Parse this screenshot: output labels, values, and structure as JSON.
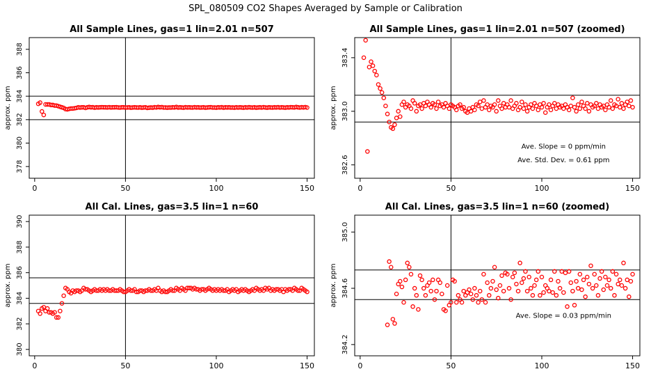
{
  "page_title": "SPL_080509  CO2 Shapes Averaged by Sample or Calibration",
  "colors": {
    "points": "#ff0000",
    "axes": "#000000",
    "background": "#ffffff"
  },
  "chart_data": [
    {
      "type": "scatter",
      "title": "All Sample Lines, gas=1 lin=2.01 n=507",
      "xlabel": "",
      "ylabel": "approx. ppm",
      "xlim": [
        -3,
        154
      ],
      "ylim": [
        377,
        389
      ],
      "xticks": [
        0,
        50,
        100,
        150
      ],
      "yticks": [
        378,
        380,
        382,
        384,
        386,
        388
      ],
      "ytick_labels": [
        "378",
        "380",
        "382",
        "384",
        "386",
        "388"
      ],
      "hlines": [
        384,
        382
      ],
      "vline": 50,
      "annotations": [],
      "x": [
        2,
        3,
        4,
        5,
        6,
        7,
        8,
        9,
        10,
        11,
        12,
        13,
        14,
        15,
        16,
        17,
        18,
        19,
        20,
        21,
        22,
        23,
        24,
        25,
        26,
        27,
        28,
        29,
        30,
        31,
        32,
        33,
        34,
        35,
        36,
        37,
        38,
        39,
        40,
        41,
        42,
        43,
        44,
        45,
        46,
        47,
        48,
        49,
        50,
        51,
        52,
        53,
        54,
        55,
        56,
        57,
        58,
        59,
        60,
        61,
        62,
        63,
        64,
        65,
        66,
        67,
        68,
        69,
        70,
        71,
        72,
        73,
        74,
        75,
        76,
        77,
        78,
        79,
        80,
        81,
        82,
        83,
        84,
        85,
        86,
        87,
        88,
        89,
        90,
        91,
        92,
        93,
        94,
        95,
        96,
        97,
        98,
        99,
        100,
        101,
        102,
        103,
        104,
        105,
        106,
        107,
        108,
        109,
        110,
        111,
        112,
        113,
        114,
        115,
        116,
        117,
        118,
        119,
        120,
        121,
        122,
        123,
        124,
        125,
        126,
        127,
        128,
        129,
        130,
        131,
        132,
        133,
        134,
        135,
        136,
        137,
        138,
        139,
        140,
        141,
        142,
        143,
        144,
        145,
        146,
        147,
        148,
        149,
        150
      ],
      "y": [
        383.35,
        383.45,
        382.7,
        382.4,
        383.3,
        383.3,
        383.3,
        383.25,
        383.25,
        383.2,
        383.2,
        383.15,
        383.1,
        383.05,
        383.0,
        382.9,
        382.88,
        382.92,
        382.95,
        382.95,
        382.97,
        383.0,
        383.05,
        383.03,
        383.05,
        383.05,
        383.0,
        383.05,
        383.08,
        383.05,
        383.06,
        383.02,
        383.05,
        383.04,
        383.05,
        383.06,
        383.05,
        383.05,
        383.04,
        383.06,
        383.04,
        383.05,
        383.05,
        383.06,
        383.04,
        383.03,
        383.05,
        383.05,
        383.03,
        383.04,
        383.05,
        383.02,
        383.04,
        383.05,
        383.04,
        383.03,
        383.05,
        383.02,
        383.04,
        383.05,
        383.0,
        383.02,
        383.04,
        383.02,
        383.06,
        383.04,
        383.08,
        383.05,
        383.07,
        383.03,
        383.04,
        383.02,
        383.04,
        383.03,
        383.05,
        383.04,
        383.08,
        383.03,
        383.05,
        383.04,
        383.02,
        383.06,
        383.04,
        383.05,
        383.04,
        383.03,
        383.06,
        383.04,
        383.05,
        383.03,
        383.04,
        383.05,
        383.02,
        383.04,
        383.05,
        383.06,
        383.03,
        383.04,
        383.02,
        383.05,
        383.04,
        383.06,
        383.02,
        383.05,
        383.04,
        383.05,
        383.03,
        383.04,
        383.02,
        383.05,
        383.03,
        383.05,
        383.04,
        383.02,
        383.05,
        383.03,
        383.06,
        383.04,
        383.03,
        383.05,
        383.02,
        383.04,
        383.05,
        383.03,
        383.06,
        383.04,
        383.02,
        383.05,
        383.04,
        383.03,
        383.05,
        383.04,
        383.06,
        383.03,
        383.05,
        383.04,
        383.02,
        383.05,
        383.04,
        383.06,
        383.05,
        383.04,
        383.08,
        383.05,
        383.03,
        383.06,
        383.04,
        383.07,
        383.03
      ]
    },
    {
      "type": "scatter",
      "title": "All Sample Lines, gas=1 lin=2.01 n=507 (zoomed)",
      "xlabel": "",
      "ylabel": "approx. ppm",
      "xlim": [
        -3,
        154
      ],
      "ylim": [
        382.5,
        383.55
      ],
      "xticks": [
        0,
        50,
        100,
        150
      ],
      "yticks": [
        382.6,
        383.0,
        383.4
      ],
      "ytick_labels": [
        "382.6",
        "383.0",
        "383.4"
      ],
      "hlines": [
        383.12,
        382.92
      ],
      "vline": 50,
      "annotations": [
        {
          "text": "Ave. Slope =  0  ppm/min",
          "x": 112,
          "y": 382.72
        },
        {
          "text": "Ave. Std. Dev. =  0.61  ppm",
          "x": 112,
          "y": 382.62
        }
      ],
      "x": [
        2,
        3,
        4,
        5,
        6,
        7,
        8,
        9,
        10,
        11,
        12,
        13,
        14,
        15,
        16,
        17,
        18,
        19,
        20,
        21,
        22,
        23,
        24,
        25,
        26,
        27,
        28,
        29,
        30,
        31,
        32,
        33,
        34,
        35,
        36,
        37,
        38,
        39,
        40,
        41,
        42,
        43,
        44,
        45,
        46,
        47,
        48,
        49,
        50,
        51,
        52,
        53,
        54,
        55,
        56,
        57,
        58,
        59,
        60,
        61,
        62,
        63,
        64,
        65,
        66,
        67,
        68,
        69,
        70,
        71,
        72,
        73,
        74,
        75,
        76,
        77,
        78,
        79,
        80,
        81,
        82,
        83,
        84,
        85,
        86,
        87,
        88,
        89,
        90,
        91,
        92,
        93,
        94,
        95,
        96,
        97,
        98,
        99,
        100,
        101,
        102,
        103,
        104,
        105,
        106,
        107,
        108,
        109,
        110,
        111,
        112,
        113,
        114,
        115,
        116,
        117,
        118,
        119,
        120,
        121,
        122,
        123,
        124,
        125,
        126,
        127,
        128,
        129,
        130,
        131,
        132,
        133,
        134,
        135,
        136,
        137,
        138,
        139,
        140,
        141,
        142,
        143,
        144,
        145,
        146,
        147,
        148,
        149,
        150
      ],
      "y": [
        383.4,
        383.53,
        382.7,
        383.33,
        383.37,
        383.34,
        383.3,
        383.27,
        383.2,
        383.17,
        383.14,
        383.1,
        383.04,
        382.98,
        382.92,
        382.88,
        382.87,
        382.9,
        382.95,
        383.0,
        382.96,
        383.05,
        383.07,
        383.03,
        383.05,
        383.04,
        383.02,
        383.08,
        383.06,
        383.0,
        383.04,
        383.05,
        383.02,
        383.06,
        383.04,
        383.07,
        383.05,
        383.03,
        383.06,
        383.05,
        383.02,
        383.07,
        383.04,
        383.05,
        383.03,
        383.06,
        383.04,
        383.02,
        383.05,
        383.04,
        383.03,
        383.01,
        383.04,
        383.05,
        383.02,
        383.03,
        383.0,
        382.99,
        383.02,
        383.0,
        383.03,
        383.01,
        383.05,
        383.04,
        383.07,
        383.02,
        383.08,
        383.03,
        383.05,
        383.01,
        383.04,
        383.03,
        383.05,
        383.0,
        383.08,
        383.04,
        383.02,
        383.06,
        383.03,
        383.05,
        383.03,
        383.08,
        383.02,
        383.04,
        383.06,
        383.01,
        383.03,
        383.07,
        383.02,
        383.05,
        383.0,
        383.03,
        383.05,
        383.02,
        383.06,
        383.04,
        383.01,
        383.05,
        383.03,
        383.06,
        382.99,
        383.03,
        383.05,
        383.01,
        383.04,
        383.06,
        383.02,
        383.05,
        383.03,
        383.04,
        383.02,
        383.05,
        383.03,
        383.01,
        383.04,
        383.1,
        383.03,
        383.0,
        383.05,
        383.02,
        383.07,
        383.04,
        383.02,
        383.06,
        383.0,
        383.05,
        383.03,
        383.04,
        383.06,
        383.02,
        383.05,
        383.03,
        383.04,
        383.01,
        383.05,
        383.03,
        383.08,
        383.02,
        383.05,
        383.04,
        383.09,
        383.03,
        383.06,
        383.02,
        383.05,
        383.07,
        383.04,
        383.08,
        383.03
      ]
    },
    {
      "type": "scatter",
      "title": "All Cal. Lines, gas=3.5 lin=1 n=60",
      "xlabel": "",
      "ylabel": "approx. ppm",
      "xlim": [
        -3,
        154
      ],
      "ylim": [
        379.5,
        390.5
      ],
      "xticks": [
        0,
        50,
        100,
        150
      ],
      "yticks": [
        380,
        382,
        384,
        386,
        388,
        390
      ],
      "ytick_labels": [
        "380",
        "382",
        "384",
        "386",
        "388",
        "390"
      ],
      "hlines": [
        385.6,
        383.6
      ],
      "vline": 50,
      "annotations": [],
      "x": [
        2,
        3,
        4,
        5,
        6,
        7,
        8,
        9,
        10,
        11,
        12,
        13,
        14,
        15,
        16,
        17,
        18,
        19,
        20,
        21,
        22,
        23,
        24,
        25,
        26,
        27,
        28,
        29,
        30,
        31,
        32,
        33,
        34,
        35,
        36,
        37,
        38,
        39,
        40,
        41,
        42,
        43,
        44,
        45,
        46,
        47,
        48,
        49,
        50,
        51,
        52,
        53,
        54,
        55,
        56,
        57,
        58,
        59,
        60,
        61,
        62,
        63,
        64,
        65,
        66,
        67,
        68,
        69,
        70,
        71,
        72,
        73,
        74,
        75,
        76,
        77,
        78,
        79,
        80,
        81,
        82,
        83,
        84,
        85,
        86,
        87,
        88,
        89,
        90,
        91,
        92,
        93,
        94,
        95,
        96,
        97,
        98,
        99,
        100,
        101,
        102,
        103,
        104,
        105,
        106,
        107,
        108,
        109,
        110,
        111,
        112,
        113,
        114,
        115,
        116,
        117,
        118,
        119,
        120,
        121,
        122,
        123,
        124,
        125,
        126,
        127,
        128,
        129,
        130,
        131,
        132,
        133,
        134,
        135,
        136,
        137,
        138,
        139,
        140,
        141,
        142,
        143,
        144,
        145,
        146,
        147,
        148,
        149,
        150
      ],
      "y": [
        383.0,
        382.8,
        383.2,
        383.3,
        383.0,
        383.2,
        382.9,
        382.9,
        382.8,
        382.9,
        382.5,
        382.5,
        383.0,
        383.6,
        384.2,
        384.8,
        384.7,
        384.5,
        384.4,
        384.6,
        384.5,
        384.6,
        384.6,
        384.5,
        384.6,
        384.8,
        384.7,
        384.7,
        384.6,
        384.5,
        384.6,
        384.7,
        384.6,
        384.6,
        384.7,
        384.6,
        384.7,
        384.6,
        384.7,
        384.6,
        384.6,
        384.7,
        384.6,
        384.6,
        384.6,
        384.7,
        384.6,
        384.5,
        384.5,
        384.6,
        384.7,
        384.6,
        384.6,
        384.7,
        384.5,
        384.5,
        384.6,
        384.6,
        384.5,
        384.6,
        384.6,
        384.7,
        384.6,
        384.6,
        384.7,
        384.6,
        384.8,
        384.6,
        384.5,
        384.6,
        384.5,
        384.5,
        384.6,
        384.7,
        384.6,
        384.6,
        384.8,
        384.7,
        384.6,
        384.8,
        384.7,
        384.6,
        384.8,
        384.8,
        384.8,
        384.7,
        384.8,
        384.7,
        384.7,
        384.6,
        384.7,
        384.7,
        384.6,
        384.7,
        384.8,
        384.7,
        384.6,
        384.7,
        384.6,
        384.7,
        384.6,
        384.7,
        384.6,
        384.6,
        384.7,
        384.5,
        384.6,
        384.7,
        384.6,
        384.7,
        384.5,
        384.6,
        384.7,
        384.6,
        384.7,
        384.6,
        384.5,
        384.6,
        384.7,
        384.6,
        384.8,
        384.7,
        384.6,
        384.7,
        384.6,
        384.8,
        384.7,
        384.8,
        384.6,
        384.7,
        384.6,
        384.7,
        384.7,
        384.6,
        384.7,
        384.5,
        384.7,
        384.6,
        384.7,
        384.7,
        384.6,
        384.8,
        384.7,
        384.6,
        384.6,
        384.8,
        384.7,
        384.6,
        384.5
      ]
    },
    {
      "type": "scatter",
      "title": "All Cal. Lines, gas=3.5 lin=1 n=60 (zoomed)",
      "xlabel": "",
      "ylabel": "approx. ppm",
      "xlim": [
        -3,
        154
      ],
      "ylim": [
        384.12,
        385.12
      ],
      "xticks": [
        0,
        50,
        100,
        150
      ],
      "yticks": [
        384.2,
        384.6,
        385.0
      ],
      "ytick_labels": [
        "384.2",
        "384.6",
        "385.0"
      ],
      "hlines": [
        384.73,
        384.52
      ],
      "vline": 50,
      "annotations": [
        {
          "text": "Ave. Slope =  0.03  ppm/min",
          "x": 112,
          "y": 384.39
        }
      ],
      "x": [
        15,
        16,
        17,
        18,
        19,
        20,
        21,
        22,
        23,
        24,
        25,
        26,
        27,
        28,
        29,
        30,
        31,
        32,
        33,
        34,
        35,
        36,
        37,
        38,
        39,
        40,
        41,
        42,
        43,
        44,
        45,
        46,
        47,
        48,
        49,
        50,
        51,
        52,
        53,
        54,
        55,
        56,
        57,
        58,
        59,
        60,
        61,
        62,
        63,
        64,
        65,
        66,
        67,
        68,
        69,
        70,
        71,
        72,
        73,
        74,
        75,
        76,
        77,
        78,
        79,
        80,
        81,
        82,
        83,
        84,
        85,
        86,
        87,
        88,
        89,
        90,
        91,
        92,
        93,
        94,
        95,
        96,
        97,
        98,
        99,
        100,
        101,
        102,
        103,
        104,
        105,
        106,
        107,
        108,
        109,
        110,
        111,
        112,
        113,
        114,
        115,
        116,
        117,
        118,
        119,
        120,
        121,
        122,
        123,
        124,
        125,
        126,
        127,
        128,
        129,
        130,
        131,
        132,
        133,
        134,
        135,
        136,
        137,
        138,
        139,
        140,
        141,
        142,
        143,
        144,
        145,
        146,
        147,
        148,
        149,
        150
      ],
      "y": [
        384.34,
        384.79,
        384.75,
        384.38,
        384.35,
        384.56,
        384.63,
        384.65,
        384.61,
        384.5,
        384.66,
        384.78,
        384.75,
        384.7,
        384.47,
        384.6,
        384.55,
        384.45,
        384.69,
        384.66,
        384.6,
        384.55,
        384.62,
        384.64,
        384.58,
        384.66,
        384.52,
        384.58,
        384.66,
        384.64,
        384.56,
        384.45,
        384.44,
        384.62,
        384.48,
        384.5,
        384.66,
        384.65,
        384.5,
        384.55,
        384.52,
        384.5,
        384.58,
        384.55,
        384.57,
        384.59,
        384.56,
        384.52,
        384.6,
        384.55,
        384.5,
        384.58,
        384.52,
        384.7,
        384.5,
        384.64,
        384.55,
        384.6,
        384.65,
        384.75,
        384.59,
        384.53,
        384.62,
        384.69,
        384.58,
        384.71,
        384.7,
        384.6,
        384.52,
        384.68,
        384.71,
        384.63,
        384.58,
        384.78,
        384.64,
        384.67,
        384.72,
        384.58,
        384.68,
        384.6,
        384.55,
        384.62,
        384.66,
        384.72,
        384.55,
        384.68,
        384.57,
        384.62,
        384.6,
        384.58,
        384.66,
        384.57,
        384.72,
        384.55,
        384.65,
        384.6,
        384.72,
        384.57,
        384.71,
        384.47,
        384.72,
        384.64,
        384.58,
        384.48,
        384.65,
        384.6,
        384.7,
        384.59,
        384.66,
        384.54,
        384.68,
        384.63,
        384.76,
        384.6,
        384.7,
        384.62,
        384.55,
        384.67,
        384.72,
        384.59,
        384.68,
        384.62,
        384.66,
        384.6,
        384.72,
        384.55,
        384.7,
        384.63,
        384.66,
        384.62,
        384.78,
        384.6,
        384.66,
        384.54,
        384.65,
        384.7
      ]
    }
  ]
}
